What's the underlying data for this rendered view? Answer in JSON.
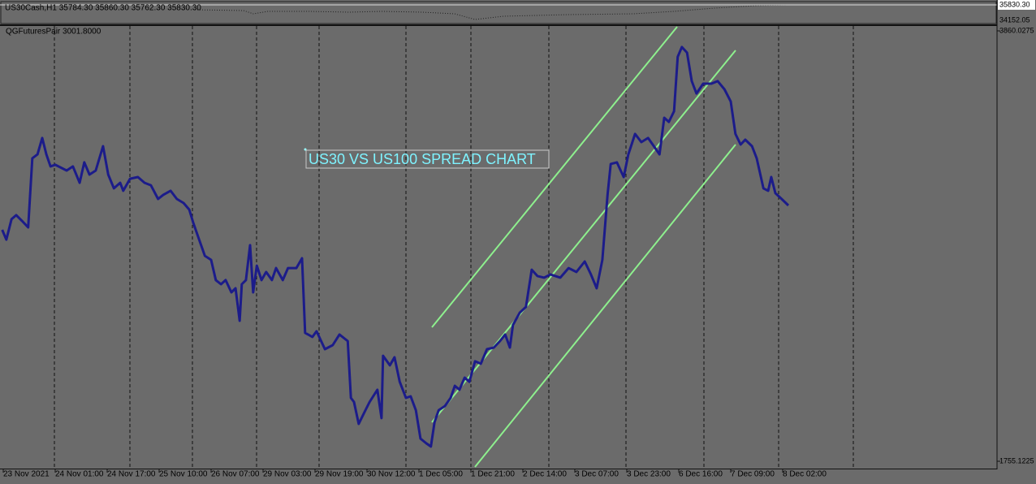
{
  "main_window": {
    "header": "US30Cash,H1  35784.30 35860.30 35762.30 35830.30",
    "price_labels": [
      "35830.30",
      "34152.05"
    ]
  },
  "chart_data": {
    "type": "line",
    "title": "QGFuturesPair 3001.8000",
    "annotation": "US30 VS US100 SPREAD CHART",
    "color": "#1c1c8a",
    "xlim": [
      -0.0625,
      19.125
    ],
    "ylim": [
      1755.1225,
      3860.0275
    ],
    "yticks": [
      3860.0275,
      1755.1225
    ],
    "xticks": [
      {
        "value": 0,
        "label": "23 Nov 2021"
      },
      {
        "value": 1,
        "label": "24 Nov 01:00"
      },
      {
        "value": 2,
        "label": "24 Nov 17:00"
      },
      {
        "value": 3,
        "label": "25 Nov 10:00"
      },
      {
        "value": 4,
        "label": "26 Nov 07:00"
      },
      {
        "value": 5,
        "label": "29 Nov 03:00"
      },
      {
        "value": 6,
        "label": "29 Nov 19:00"
      },
      {
        "value": 7,
        "label": "30 Nov 12:00"
      },
      {
        "value": 8,
        "label": "1 Dec 05:00"
      },
      {
        "value": 9,
        "label": "1 Dec 21:00"
      },
      {
        "value": 10,
        "label": "2 Dec 14:00"
      },
      {
        "value": 11,
        "label": "3 Dec 07:00"
      },
      {
        "value": 12,
        "label": "3 Dec 23:00"
      },
      {
        "value": 13,
        "label": "6 Dec 16:00"
      },
      {
        "value": 14,
        "label": "7 Dec 09:00"
      },
      {
        "value": 15,
        "label": "8 Dec 02:00"
      }
    ],
    "x": [
      -0.02,
      0.06,
      0.16,
      0.25,
      0.36,
      0.48,
      0.56,
      0.66,
      0.75,
      0.83,
      0.91,
      1.0,
      1.22,
      1.34,
      1.47,
      1.56,
      1.66,
      1.78,
      1.92,
      2.02,
      2.13,
      2.25,
      2.31,
      2.44,
      2.59,
      2.72,
      2.84,
      2.98,
      3.08,
      3.22,
      3.34,
      3.47,
      3.58,
      3.66,
      3.77,
      3.88,
      4.0,
      4.09,
      4.19,
      4.28,
      4.39,
      4.47,
      4.55,
      4.59,
      4.67,
      4.75,
      4.81,
      4.88,
      4.97,
      5.06,
      5.17,
      5.25,
      5.38,
      5.48,
      5.64,
      5.75,
      5.81,
      5.95,
      6.03,
      6.19,
      6.34,
      6.47,
      6.63,
      6.69,
      6.75,
      6.84,
      6.97,
      7.05,
      7.2,
      7.28,
      7.31,
      7.44,
      7.53,
      7.63,
      7.75,
      7.84,
      7.94,
      8.03,
      8.14,
      8.23,
      8.3,
      8.38,
      8.5,
      8.61,
      8.69,
      8.78,
      8.88,
      8.97,
      9.08,
      9.19,
      9.31,
      9.44,
      9.56,
      9.66,
      9.75,
      9.81,
      9.94,
      10.06,
      10.17,
      10.28,
      10.41,
      10.53,
      10.72,
      10.88,
      11.03,
      11.19,
      11.31,
      11.42,
      11.53,
      11.63,
      11.69,
      11.81,
      11.94,
      12.03,
      12.16,
      12.28,
      12.41,
      12.52,
      12.63,
      12.72,
      12.81,
      12.91,
      12.98,
      13.06,
      13.16,
      13.25,
      13.34,
      13.47,
      13.63,
      13.75,
      13.88,
      14.0,
      14.09,
      14.19,
      14.28,
      14.41,
      14.5,
      14.63,
      14.72,
      14.78,
      14.86,
      14.98,
      15.11
    ],
    "values": [
      2887,
      2839,
      2939,
      2959,
      2931,
      2899,
      3237,
      3256,
      3336,
      3256,
      3197,
      3205,
      3177,
      3197,
      3117,
      3217,
      3157,
      3177,
      3296,
      3157,
      3090,
      3117,
      3078,
      3137,
      3145,
      3117,
      3105,
      3038,
      3058,
      3078,
      3038,
      3018,
      2986,
      2919,
      2839,
      2760,
      2740,
      2641,
      2621,
      2641,
      2581,
      2601,
      2442,
      2621,
      2641,
      2812,
      2581,
      2712,
      2641,
      2681,
      2641,
      2700,
      2641,
      2700,
      2700,
      2748,
      2383,
      2363,
      2391,
      2303,
      2323,
      2375,
      2343,
      2065,
      2045,
      1938,
      2005,
      2045,
      2105,
      1966,
      2271,
      2224,
      2264,
      2144,
      2065,
      2073,
      2005,
      1866,
      1843,
      1827,
      1946,
      2005,
      2025,
      2065,
      2124,
      2105,
      2164,
      2144,
      2244,
      2232,
      2303,
      2311,
      2343,
      2375,
      2311,
      2422,
      2482,
      2510,
      2692,
      2661,
      2653,
      2669,
      2653,
      2700,
      2681,
      2732,
      2669,
      2601,
      2740,
      3058,
      3209,
      3217,
      3145,
      3256,
      3356,
      3316,
      3336,
      3296,
      3256,
      3435,
      3415,
      3467,
      3733,
      3781,
      3753,
      3614,
      3554,
      3602,
      3602,
      3614,
      3574,
      3515,
      3356,
      3304,
      3328,
      3296,
      3237,
      3090,
      3078,
      3145,
      3066,
      3038,
      3006
    ]
  }
}
